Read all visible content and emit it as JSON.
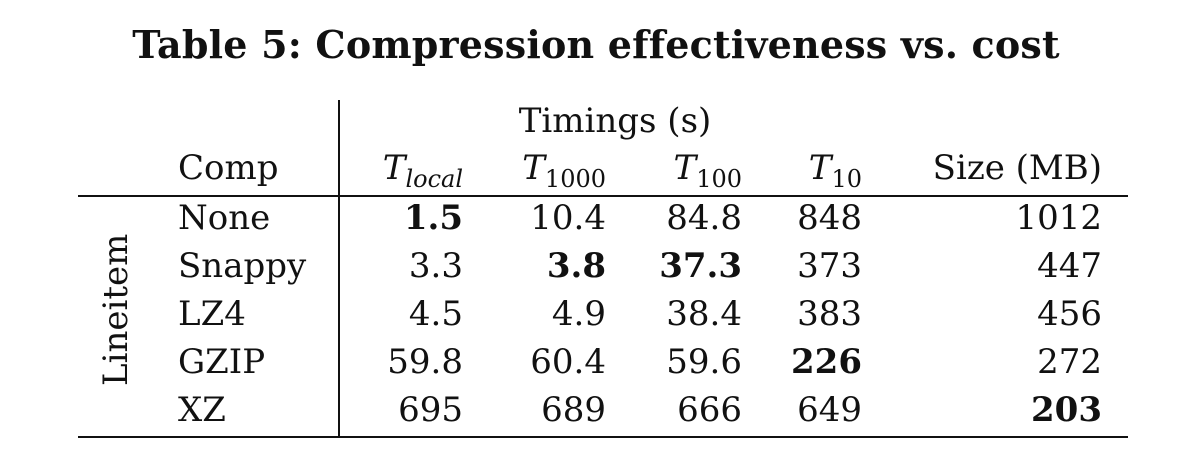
{
  "title": "Table 5: Compression effectiveness vs. cost",
  "group_header": "Timings (s)",
  "row_group_label": "Lineitem",
  "headers": {
    "comp": "Comp",
    "t_local": {
      "base": "T",
      "sub": "local"
    },
    "t_1000": {
      "base": "T",
      "sub": "1000"
    },
    "t_100": {
      "base": "T",
      "sub": "100"
    },
    "t_10": {
      "base": "T",
      "sub": "10"
    },
    "size": "Size (MB)"
  },
  "rows": [
    {
      "comp": "None",
      "t_local": "1.5",
      "t_1000": "10.4",
      "t_100": "84.8",
      "t_10": "848",
      "size": "1012"
    },
    {
      "comp": "Snappy",
      "t_local": "3.3",
      "t_1000": "3.8",
      "t_100": "37.3",
      "t_10": "373",
      "size": "447"
    },
    {
      "comp": "LZ4",
      "t_local": "4.5",
      "t_1000": "4.9",
      "t_100": "38.4",
      "t_10": "383",
      "size": "456"
    },
    {
      "comp": "GZIP",
      "t_local": "59.8",
      "t_1000": "60.4",
      "t_100": "59.6",
      "t_10": "226",
      "size": "272"
    },
    {
      "comp": "XZ",
      "t_local": "695",
      "t_1000": "689",
      "t_100": "666",
      "t_10": "649",
      "size": "203"
    }
  ],
  "bold_cells": [
    {
      "row": 0,
      "col": "t_local"
    },
    {
      "row": 1,
      "col": "t_1000"
    },
    {
      "row": 1,
      "col": "t_100"
    },
    {
      "row": 3,
      "col": "t_10"
    },
    {
      "row": 4,
      "col": "size"
    }
  ]
}
